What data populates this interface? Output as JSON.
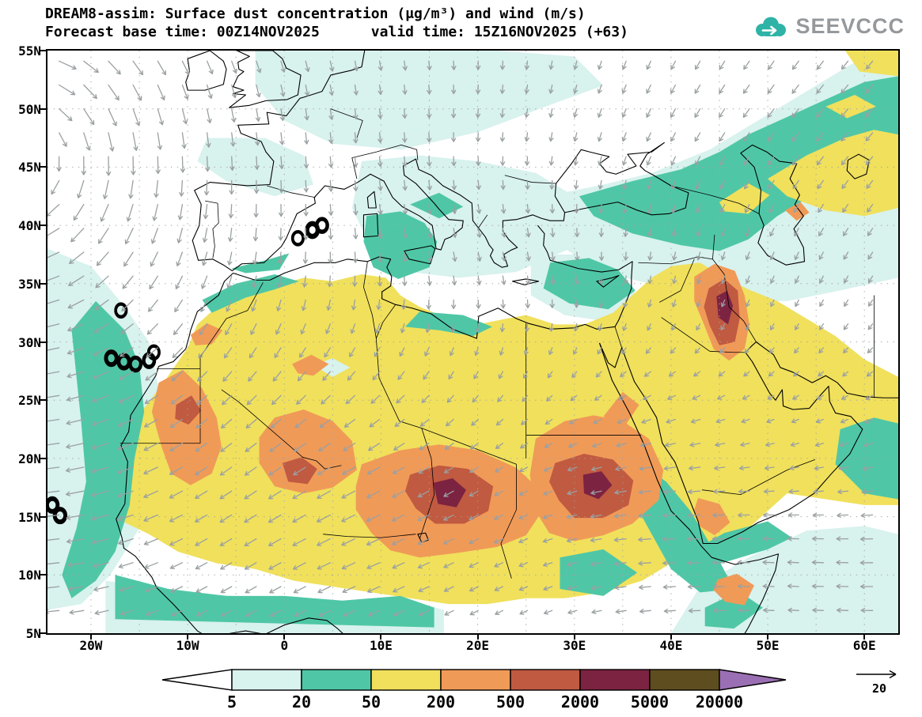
{
  "header": {
    "title_line1": "DREAM8-assim: Surface dust concentration (μg/m³) and wind (m/s)",
    "title_line2": "Forecast base time: 00Z14NOV2025      valid time: 15Z16NOV2025 (+63)",
    "logo_text": "SEEVCCC"
  },
  "map": {
    "lat_ticks": [
      {
        "lat": 55,
        "label": "55N"
      },
      {
        "lat": 50,
        "label": "50N"
      },
      {
        "lat": 45,
        "label": "45N"
      },
      {
        "lat": 40,
        "label": "40N"
      },
      {
        "lat": 35,
        "label": "35N"
      },
      {
        "lat": 30,
        "label": "30N"
      },
      {
        "lat": 25,
        "label": "25N"
      },
      {
        "lat": 20,
        "label": "20N"
      },
      {
        "lat": 15,
        "label": "15N"
      },
      {
        "lat": 10,
        "label": "10N"
      },
      {
        "lat": 5,
        "label": "5N"
      }
    ],
    "lon_ticks": [
      {
        "lon": -20,
        "label": "20W"
      },
      {
        "lon": -10,
        "label": "10W"
      },
      {
        "lon": 0,
        "label": "0"
      },
      {
        "lon": 10,
        "label": "10E"
      },
      {
        "lon": 20,
        "label": "20E"
      },
      {
        "lon": 30,
        "label": "30E"
      },
      {
        "lon": 40,
        "label": "40E"
      },
      {
        "lon": 50,
        "label": "50E"
      },
      {
        "lon": 60,
        "label": "60E"
      }
    ],
    "lon_range": [
      -24.5,
      63.5
    ],
    "lat_range": [
      5,
      55
    ],
    "grid_step_deg": 5
  },
  "palette": {
    "below_min": "#ffffff",
    "c5": "#d8f2ee",
    "c20": "#4fc7a6",
    "c50": "#f0e05c",
    "c200": "#f09a58",
    "c500": "#c05a40",
    "c2000": "#7c2342",
    "c5000": "#5e4d1f",
    "c20000": "#9b6fb4",
    "coast": "#000000",
    "wind_arrow": "#9aa0a2",
    "graticule": "#a3a3a3",
    "logo_teal": "#2fb3a7",
    "logo_gray": "#95999c"
  },
  "colorbar": {
    "labels": [
      "5",
      "20",
      "50",
      "200",
      "500",
      "2000",
      "5000",
      "20000"
    ],
    "segment_colors": [
      "#d8f2ee",
      "#4fc7a6",
      "#f0e05c",
      "#f09a58",
      "#c05a40",
      "#7c2342",
      "#5e4d1f"
    ],
    "below_min_color": "#ffffff",
    "above_max_color": "#9b6fb4"
  },
  "wind_ref": {
    "label": "20"
  },
  "chart_data": {
    "type": "heatmap",
    "title": "DREAM8-assim: Surface dust concentration (μg/m³) and wind (m/s)",
    "subtitle": "Forecast base time: 00Z14NOV2025   valid time: 15Z16NOV2025 (+63)",
    "variable": "surface dust concentration",
    "units": "μg/m³",
    "wind_units": "m/s",
    "contour_levels": [
      5,
      20,
      50,
      200,
      500,
      2000,
      5000,
      20000
    ],
    "level_colors": [
      "#ffffff",
      "#d8f2ee",
      "#4fc7a6",
      "#f0e05c",
      "#f09a58",
      "#c05a40",
      "#7c2342",
      "#5e4d1f",
      "#9b6fb4"
    ],
    "lon_axis_ticks": [
      "20W",
      "10W",
      "0",
      "10E",
      "20E",
      "30E",
      "40E",
      "50E",
      "60E"
    ],
    "lat_axis_ticks": [
      "5N",
      "10N",
      "15N",
      "20N",
      "25N",
      "30N",
      "35N",
      "40N",
      "45N",
      "50N",
      "55N"
    ],
    "lon_range_deg": [
      -24.5,
      63.5
    ],
    "lat_range_deg": [
      5,
      55
    ],
    "wind_reference_ms": 20,
    "grid": "dotted 5-degree graticule",
    "legend_position": "bottom"
  }
}
